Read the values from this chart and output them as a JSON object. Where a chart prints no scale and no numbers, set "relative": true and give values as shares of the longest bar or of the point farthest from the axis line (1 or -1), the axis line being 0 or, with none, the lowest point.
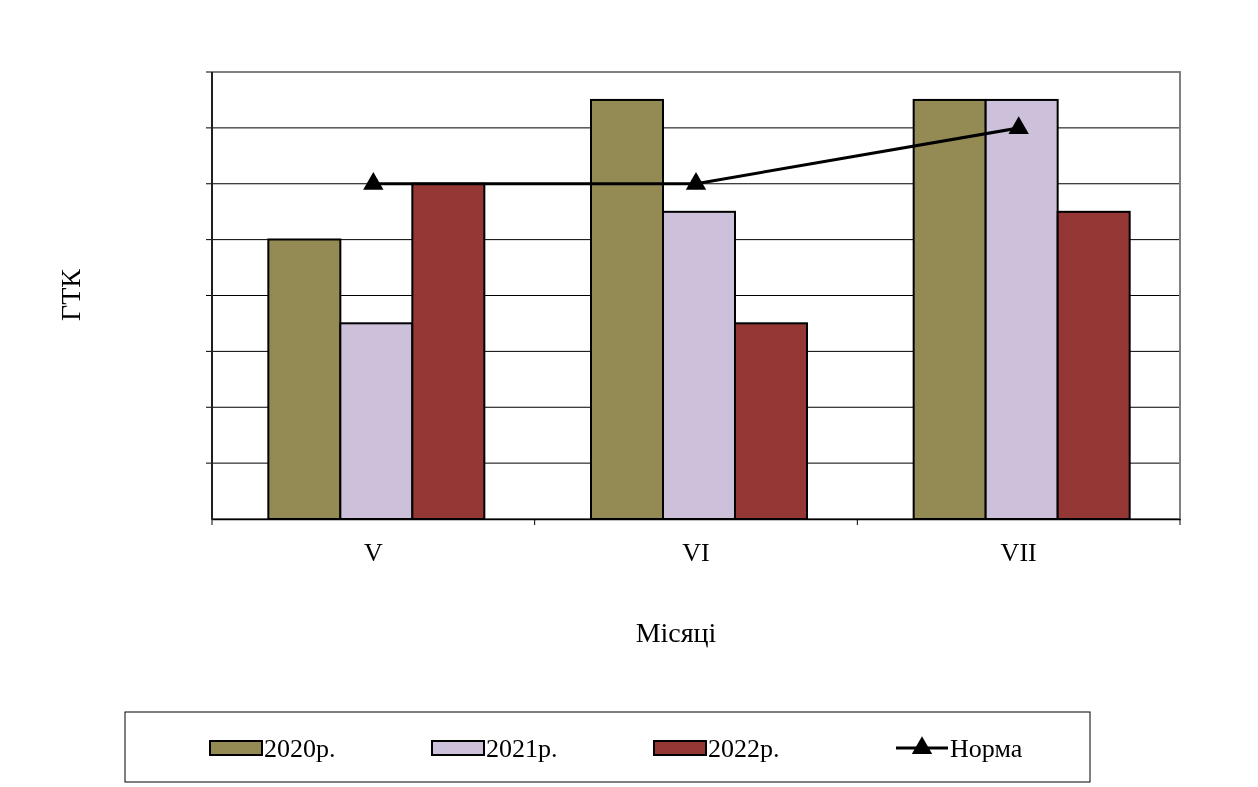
{
  "chart_data": {
    "type": "bar",
    "relative": true,
    "xlabel": "Місяці",
    "ylabel": "ГТК",
    "categories": [
      "V",
      "VI",
      "VII"
    ],
    "series": [
      {
        "name": "2020р.",
        "color": "#948a54",
        "values": [
          0.667,
          1,
          1
        ]
      },
      {
        "name": "2021р.",
        "color": "#ccc0da",
        "values": [
          0.467,
          0.733,
          1
        ]
      },
      {
        "name": "2022р.",
        "color": "#953735",
        "values": [
          0.8,
          0.467,
          0.733
        ]
      },
      {
        "name": "Норма",
        "type": "line",
        "color": "#000000",
        "marker": "triangle",
        "values": [
          0.8,
          0.8,
          0.933
        ]
      }
    ],
    "grid": true,
    "legend": "bottom"
  }
}
